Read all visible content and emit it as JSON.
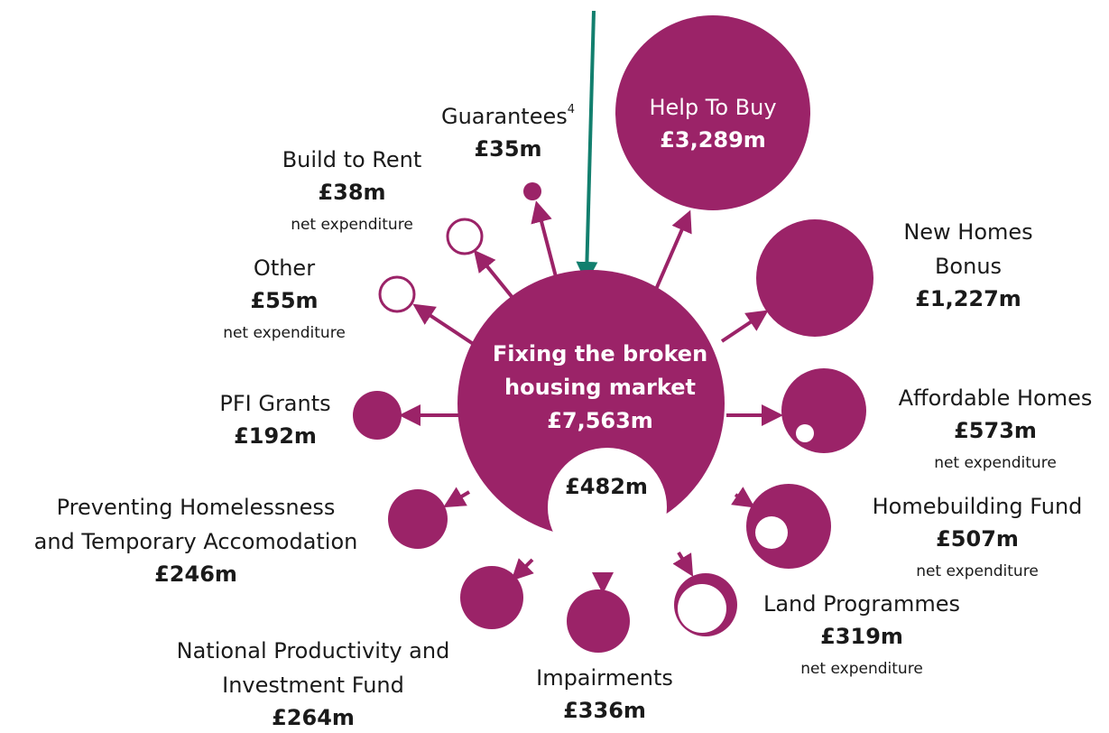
{
  "center": {
    "lines": [
      "Fixing the broken",
      "housing market"
    ],
    "amount": "£7,563m",
    "inner_amount": "£482m"
  },
  "nodes": [
    {
      "lines": [
        "Help To Buy"
      ],
      "amount": "£3,289m"
    },
    {
      "lines": [
        "New Homes",
        "Bonus"
      ],
      "amount": "£1,227m"
    },
    {
      "lines": [
        "Affordable Homes"
      ],
      "amount": "£573m",
      "note": "net expenditure"
    },
    {
      "lines": [
        "Homebuilding Fund"
      ],
      "amount": "£507m",
      "note": "net expenditure"
    },
    {
      "lines": [
        "Land Programmes"
      ],
      "amount": "£319m",
      "note": "net expenditure"
    },
    {
      "lines": [
        "Impairments"
      ],
      "amount": "£336m"
    },
    {
      "lines": [
        "National Productivity and",
        "Investment Fund"
      ],
      "amount": "£264m"
    },
    {
      "lines": [
        "Preventing Homelessness",
        "and Temporary Accomodation"
      ],
      "amount": "£246m"
    },
    {
      "lines": [
        "PFI Grants"
      ],
      "amount": "£192m"
    },
    {
      "lines": [
        "Other"
      ],
      "amount": "£55m",
      "note": "net expenditure"
    },
    {
      "lines": [
        "Build to Rent"
      ],
      "amount": "£38m",
      "note": "net expenditure"
    },
    {
      "lines": [
        "Guarantees"
      ],
      "footnote": "4",
      "amount": "£35m"
    }
  ]
}
